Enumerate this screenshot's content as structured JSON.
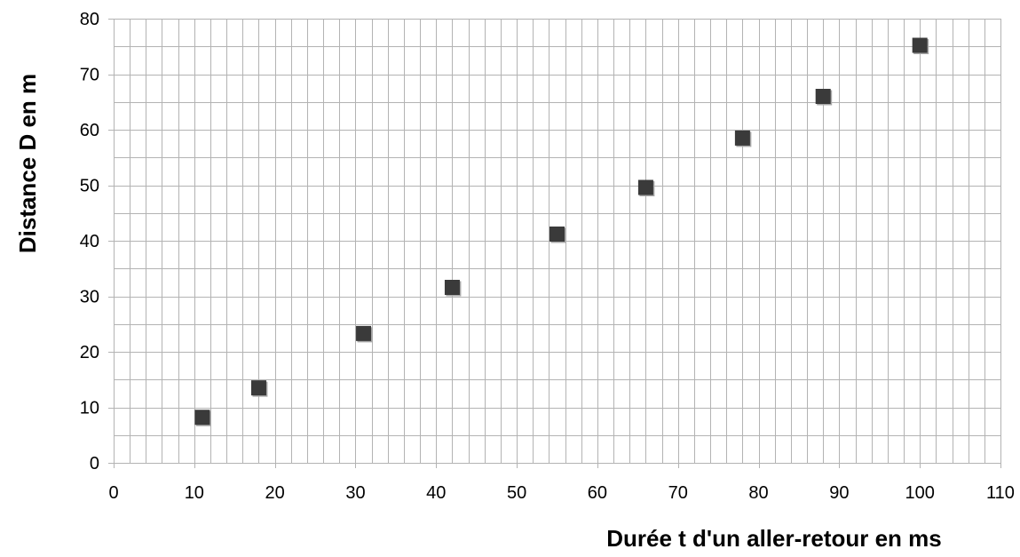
{
  "chart_data": {
    "type": "scatter",
    "title": "",
    "xlabel": "Durée t d'un aller-retour en ms",
    "ylabel": "Distance D en m",
    "xlim": [
      0,
      110
    ],
    "ylim": [
      0,
      80
    ],
    "x_major_ticks": [
      0,
      10,
      20,
      30,
      40,
      50,
      60,
      70,
      80,
      90,
      100,
      110
    ],
    "y_major_ticks": [
      0,
      10,
      20,
      30,
      40,
      50,
      60,
      70,
      80
    ],
    "x_tick_labels": [
      "0",
      "10",
      "20",
      "30",
      "40",
      "50",
      "60",
      "70",
      "80",
      "90",
      "100",
      "110"
    ],
    "y_tick_labels": [
      "0",
      "10",
      "20",
      "30",
      "40",
      "50",
      "60",
      "70",
      "80"
    ],
    "x_minor_step": 2,
    "y_minor_step": 5,
    "grid": true,
    "legend": "none",
    "marker": "square",
    "marker_color": "#3a3a3a",
    "grid_color": "#b3b3b3",
    "series": [
      {
        "x": [
          11,
          18,
          31,
          42,
          55,
          66,
          78,
          88,
          100
        ],
        "y": [
          8.2,
          13.5,
          23.3,
          31.6,
          41.2,
          49.6,
          58.5,
          66.0,
          75.2
        ]
      }
    ]
  }
}
